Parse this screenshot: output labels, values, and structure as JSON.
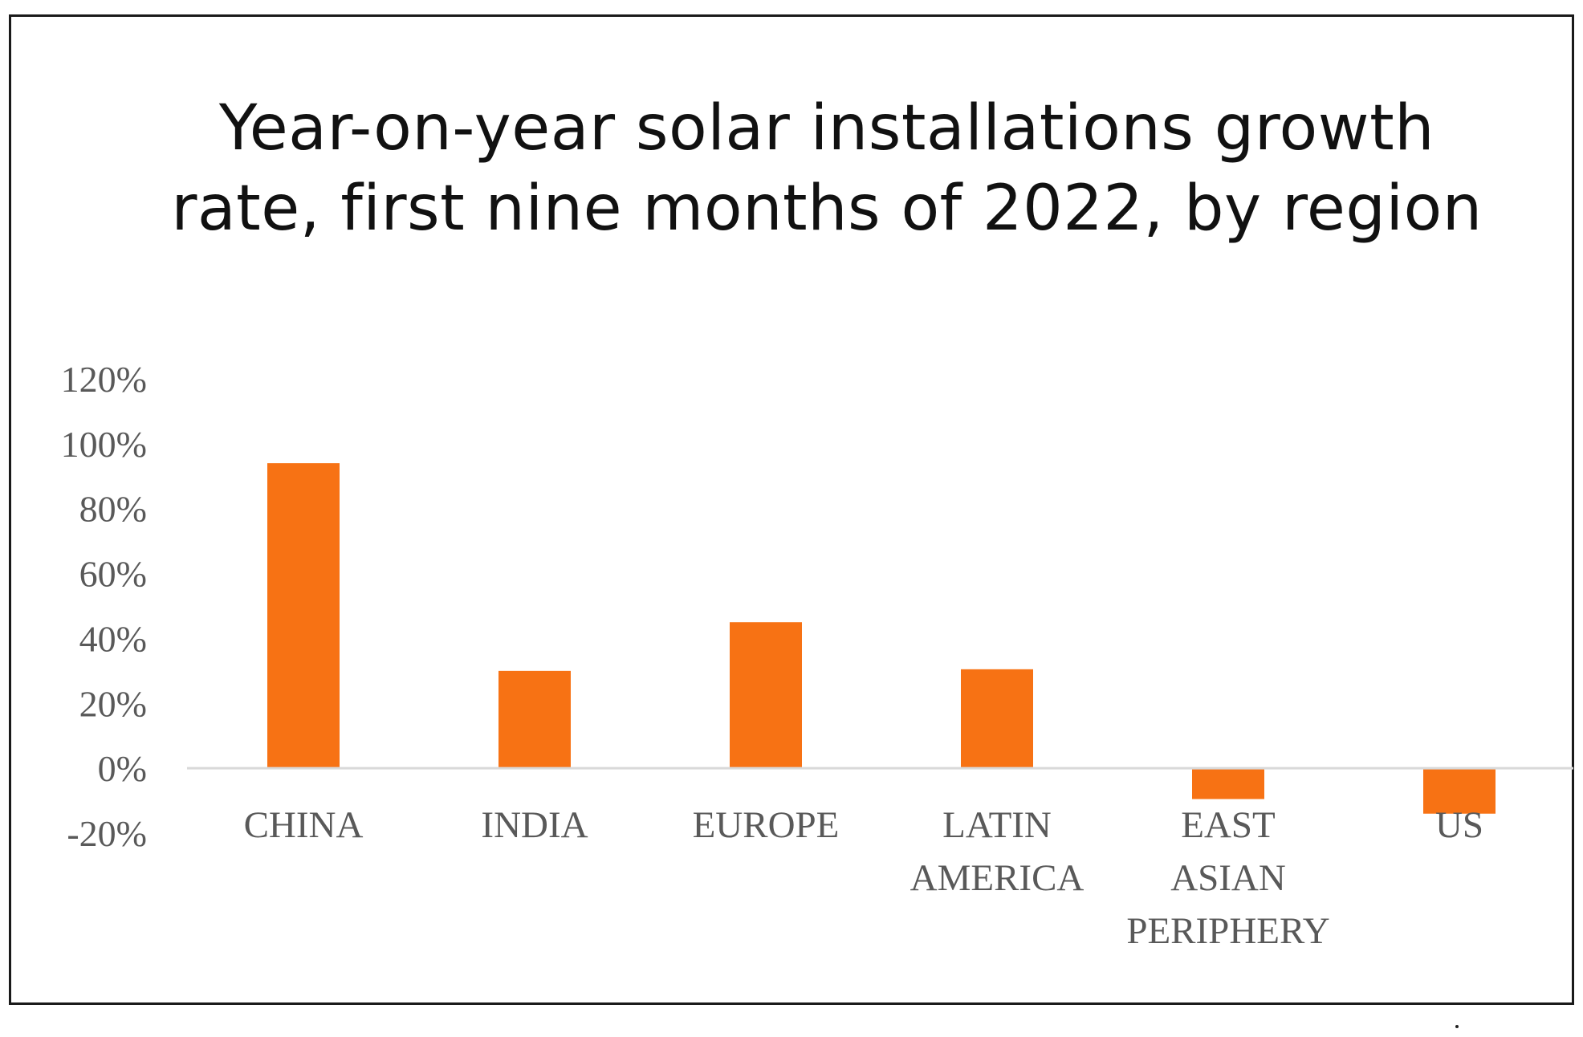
{
  "chart_data": {
    "type": "bar",
    "title": "Year-on-year solar installations growth rate, first nine months of 2022, by region",
    "xlabel": "",
    "ylabel": "",
    "categories": [
      [
        "CHINA"
      ],
      [
        "INDIA"
      ],
      [
        "EUROPE"
      ],
      [
        "LATIN",
        "AMERICA"
      ],
      [
        "EAST",
        "ASIAN",
        "PERIPHERY"
      ],
      [
        "US"
      ]
    ],
    "values": [
      0.94,
      0.3,
      0.45,
      0.305,
      -0.095,
      -0.14
    ],
    "yticks": [
      "120%",
      "100%",
      "80%",
      "60%",
      "40%",
      "20%",
      "0%",
      "-20%"
    ],
    "ylim": [
      -0.2,
      1.2
    ],
    "grid": false,
    "legend": "none",
    "colors": {
      "bar": "#F77214",
      "axis": "#D9D9D9"
    }
  }
}
